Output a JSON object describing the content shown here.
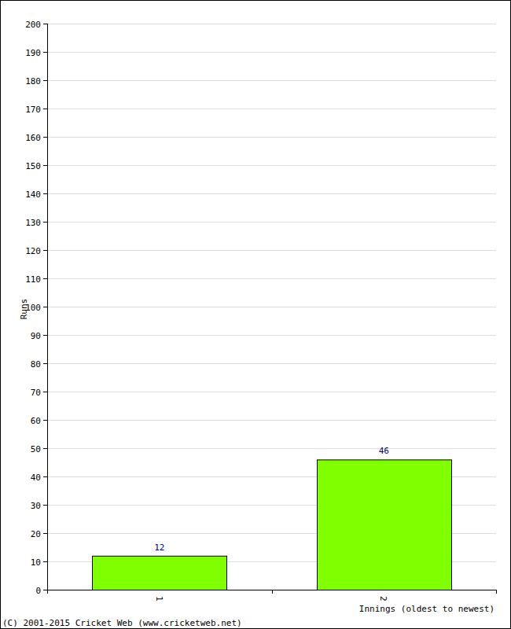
{
  "chart_data": {
    "type": "bar",
    "x_label": "Innings (oldest to newest)",
    "y_label": "Runs",
    "annotations": [
      "(C) 2001-2015 Cricket Web (www.cricketweb.net)"
    ],
    "categories": [
      "1",
      "2"
    ],
    "values": [
      12,
      46
    ],
    "color": "#80ff00",
    "ylim": [
      0,
      200
    ],
    "yticks": [
      0,
      10,
      20,
      30,
      40,
      50,
      60,
      70,
      80,
      90,
      100,
      110,
      120,
      130,
      140,
      150,
      160,
      170,
      180,
      190,
      200
    ],
    "grid": true,
    "data_labels": true
  }
}
